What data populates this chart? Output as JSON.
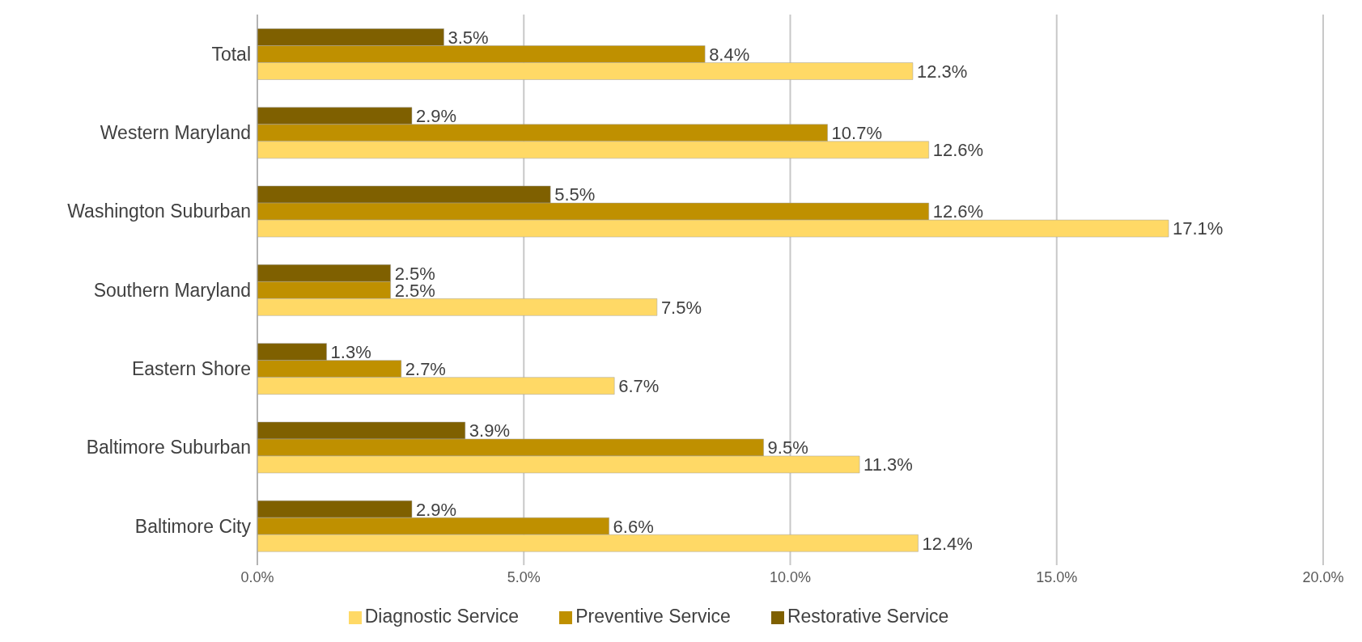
{
  "chart_data": {
    "type": "bar",
    "orientation": "horizontal",
    "categories": [
      "Total",
      "Western Maryland",
      "Washington Suburban",
      "Southern Maryland",
      "Eastern Shore",
      "Baltimore Suburban",
      "Baltimore City"
    ],
    "series": [
      {
        "name": "Restorative Service",
        "color": "#7f6000",
        "values": [
          3.5,
          2.9,
          5.5,
          2.5,
          1.3,
          3.9,
          2.9
        ],
        "value_labels": [
          "3.5%",
          "2.9%",
          "5.5%",
          "2.5%",
          "1.3%",
          "3.9%",
          "2.9%"
        ]
      },
      {
        "name": "Preventive Service",
        "color": "#bf9000",
        "values": [
          8.4,
          10.7,
          12.6,
          2.5,
          2.7,
          9.5,
          6.6
        ],
        "value_labels": [
          "8.4%",
          "10.7%",
          "12.6%",
          "2.5%",
          "2.7%",
          "9.5%",
          "6.6%"
        ]
      },
      {
        "name": "Diagnostic Service",
        "color": "#ffd966",
        "values": [
          12.3,
          12.6,
          17.1,
          7.5,
          6.7,
          11.3,
          12.4
        ],
        "value_labels": [
          "12.3%",
          "12.6%",
          "17.1%",
          "7.5%",
          "6.7%",
          "11.3%",
          "12.4%"
        ]
      }
    ],
    "xlim": [
      0,
      20
    ],
    "xticks": [
      {
        "value": 0,
        "label": "0.0%"
      },
      {
        "value": 5,
        "label": "5.0%"
      },
      {
        "value": 10,
        "label": "10.0%"
      },
      {
        "value": 15,
        "label": "15.0%"
      },
      {
        "value": 20,
        "label": "20.0%"
      }
    ],
    "grid": "x",
    "legend": "bottom"
  }
}
